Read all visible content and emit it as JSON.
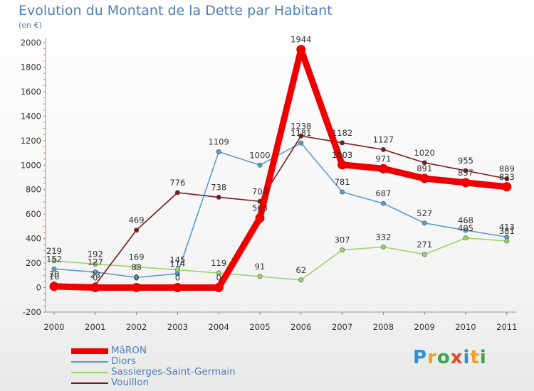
{
  "title": "Evolution du Montant de la Dette par Habitant",
  "subtitle": "(en €)",
  "logo_text": "Proxiti",
  "chart_data": {
    "type": "line",
    "title": "Evolution du Montant de la Dette par Habitant",
    "ylabel": "(en €)",
    "categories": [
      "2000",
      "2001",
      "2002",
      "2003",
      "2004",
      "2005",
      "2006",
      "2007",
      "2008",
      "2009",
      "2010",
      "2011"
    ],
    "ylim": [
      -200,
      2000
    ],
    "yticks": [
      -200,
      0,
      200,
      400,
      600,
      800,
      1000,
      1200,
      1400,
      1600,
      1800,
      2000
    ],
    "grid": false,
    "legend_position": "bottom-left",
    "series": [
      {
        "name": "MâRON",
        "color": "#ee0000",
        "values": [
          10,
          0,
          0,
          0,
          0,
          568,
          1944,
          1003,
          971,
          891,
          857,
          823
        ]
      },
      {
        "name": "Diors",
        "color": "#5b9bd0",
        "values": [
          152,
          127,
          83,
          114,
          1109,
          1000,
          1181,
          781,
          687,
          527,
          468,
          413
        ]
      },
      {
        "name": "Sassierges-Saint-Germain",
        "color": "#99d66a",
        "values": [
          219,
          192,
          169,
          145,
          119,
          91,
          62,
          307,
          332,
          271,
          405,
          381
        ]
      },
      {
        "name": "Vouillon",
        "color": "#7a1a1a",
        "values": [
          30,
          23,
          469,
          776,
          738,
          704,
          1238,
          1182,
          1127,
          1020,
          955,
          889
        ]
      }
    ]
  }
}
